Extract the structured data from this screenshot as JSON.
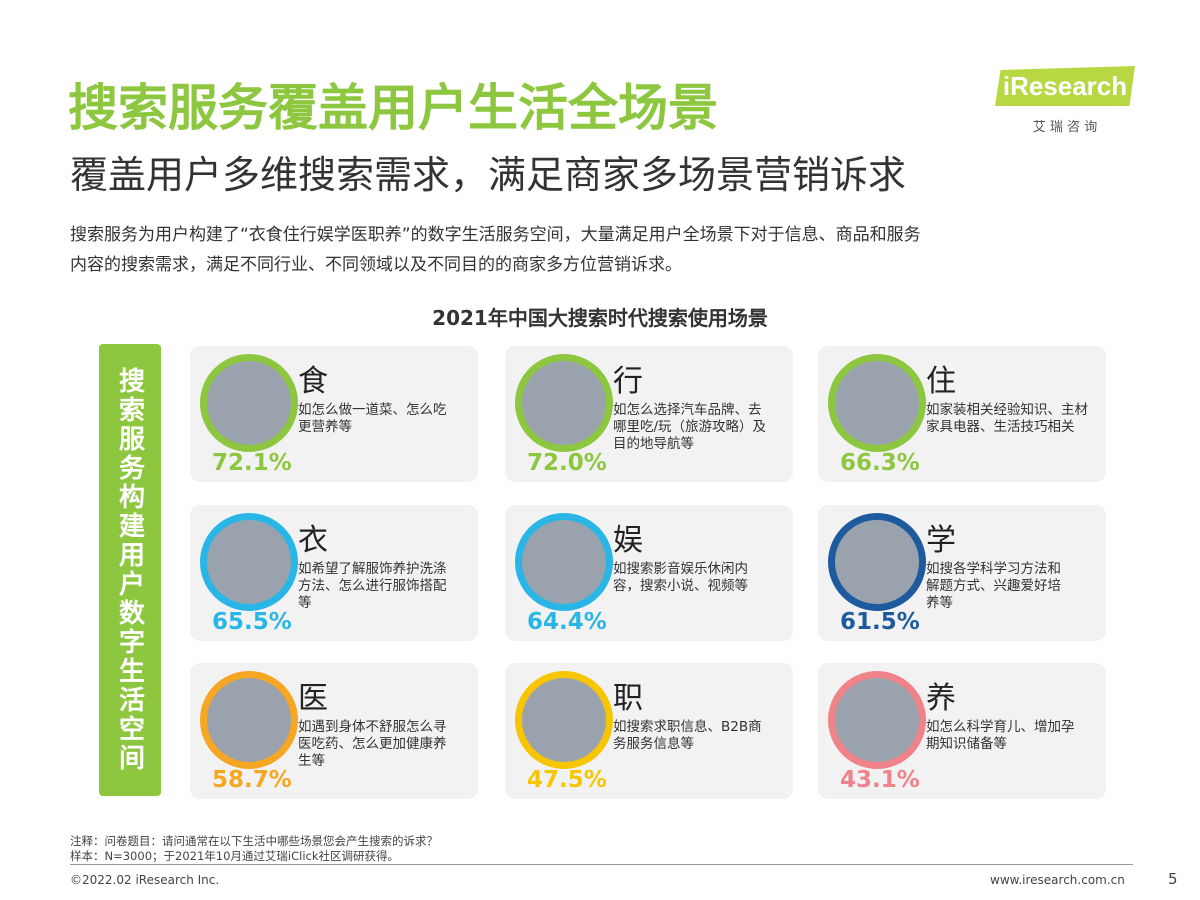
{
  "header": {
    "title": "搜索服务覆盖用户生活全场景",
    "subtitle": "覆盖用户多维搜索需求，满足商家多场景营销诉求",
    "logo": "iResearch",
    "logo_cn": "艾 瑞 咨 询"
  },
  "intro": [
    "搜索服务为用户构建了“衣食住行娱学医职养”的数字生活服务空间，大量满足用户全场景下对于信息、商品和服务",
    "内容的搜索需求，满足不同行业、不同领域以及不同目的的商家多方位营销诉求。"
  ],
  "figure_title": "2021年中国大搜索时代搜索使用场景",
  "sidebar": "搜索服务构建用户数字生活空间",
  "cards": [
    {
      "label": "食",
      "description": [
        "如怎么做一道菜、怎么吃",
        "更营养等"
      ],
      "percent": "72.1%",
      "color": "#8dc63f"
    },
    {
      "label": "行",
      "description": [
        "如怎么选择汽车品牌、去",
        "哪里吃/玩（旅游攻略）及",
        "目的地导航等"
      ],
      "percent": "72.0%",
      "color": "#8dc63f"
    },
    {
      "label": "住",
      "description": [
        "如家装相关经验知识、主材",
        "家具电器、生活技巧相关"
      ],
      "percent": "66.3%",
      "color": "#8dc63f"
    },
    {
      "label": "衣",
      "description": [
        "如希望了解服饰养护洗涤",
        "方法、怎么进行服饰搭配",
        "等"
      ],
      "percent": "65.5%",
      "color": "#29b6e6"
    },
    {
      "label": "娱",
      "description": [
        "如搜索影音娱乐休闲内",
        "容，搜索小说、视频等"
      ],
      "percent": "64.4%",
      "color": "#29b6e6"
    },
    {
      "label": "学",
      "description": [
        "如搜各学科学习方法和",
        "解题方式、兴趣爱好培",
        "养等"
      ],
      "percent": "61.5%",
      "color": "#1e5b9e"
    },
    {
      "label": "医",
      "description": [
        "如遇到身体不舒服怎么寻",
        "医吃药、怎么更加健康养",
        "生等"
      ],
      "percent": "58.7%",
      "color": "#f5a623"
    },
    {
      "label": "职",
      "description": [
        "如搜索求职信息、B2B商",
        "务服务信息等"
      ],
      "percent": "47.5%",
      "color": "#f7c600"
    },
    {
      "label": "养",
      "description": [
        "如怎么科学育儿、增加孕",
        "期知识储备等"
      ],
      "percent": "43.1%",
      "color": "#f0838a"
    }
  ],
  "notes": [
    "注释：问卷题目：请问通常在以下生活中哪些场景您会产生搜索的诉求？",
    "样本：N=3000；于2021年10月通过艾瑞iClick社区调研获得。"
  ],
  "footer": {
    "copyright": "©2022.02 iResearch Inc.",
    "url": "www.iresearch.com.cn",
    "page": "5"
  }
}
